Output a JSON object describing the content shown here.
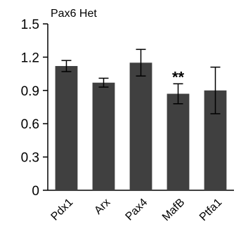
{
  "chart_data": {
    "type": "bar",
    "title": "Pax6 Het",
    "categories": [
      "Pdx1",
      "Arx",
      "Pax4",
      "MafB",
      "Ptfa1"
    ],
    "values": [
      1.12,
      0.97,
      1.15,
      0.87,
      0.9
    ],
    "errors": [
      0.05,
      0.04,
      0.12,
      0.09,
      0.21
    ],
    "annotations": [
      {
        "category": "MafB",
        "text": "**"
      }
    ],
    "yticks": [
      "0",
      "0.3",
      "0.6",
      "0.9",
      "1.2",
      "1.5"
    ],
    "ylim": [
      0,
      1.5
    ],
    "bar_color": "#404040",
    "grid": false,
    "legend": "none"
  }
}
